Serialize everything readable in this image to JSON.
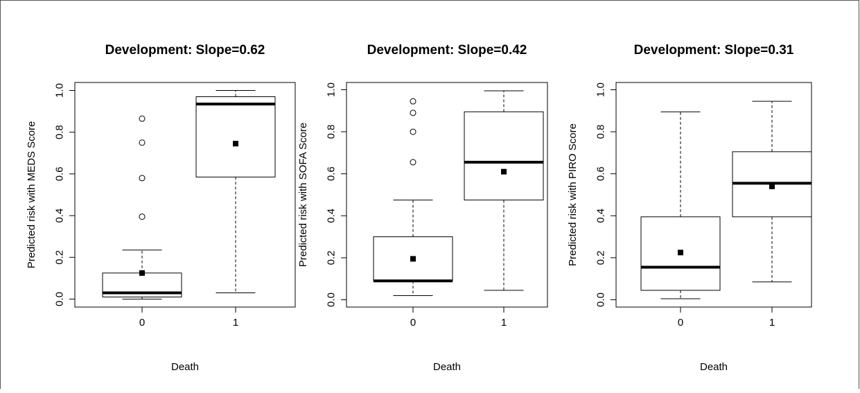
{
  "chart_data": [
    {
      "type": "boxplot",
      "title": "Development: Slope=0.62",
      "xlabel": "Death",
      "ylabel": "Predicted risk with MEDS Score",
      "categories": [
        "0",
        "1"
      ],
      "yticks": [
        "0.0",
        "0.2",
        "0.4",
        "0.6",
        "0.8",
        "1.0"
      ],
      "ylim": [
        0,
        1
      ],
      "boxes": [
        {
          "category": "0",
          "whisker_low": 0.0,
          "q1": 0.01,
          "median": 0.03,
          "q3": 0.125,
          "whisker_high": 0.235,
          "mean": 0.125,
          "outliers": [
            0.395,
            0.58,
            0.75,
            0.865
          ]
        },
        {
          "category": "1",
          "whisker_low": 0.03,
          "q1": 0.585,
          "median": 0.935,
          "q3": 0.97,
          "whisker_high": 1.0,
          "mean": 0.745,
          "outliers": []
        }
      ]
    },
    {
      "type": "boxplot",
      "title": "Development: Slope=0.42",
      "xlabel": "Death",
      "ylabel": "Predicted risk with SOFA Score",
      "categories": [
        "0",
        "1"
      ],
      "yticks": [
        "0.0",
        "0.2",
        "0.4",
        "0.6",
        "0.8",
        "1.0"
      ],
      "ylim": [
        0,
        1
      ],
      "boxes": [
        {
          "category": "0",
          "whisker_low": 0.02,
          "q1": 0.09,
          "median": 0.09,
          "q3": 0.3,
          "whisker_high": 0.475,
          "mean": 0.195,
          "outliers": [
            0.655,
            0.8,
            0.89,
            0.945
          ]
        },
        {
          "category": "1",
          "whisker_low": 0.045,
          "q1": 0.475,
          "median": 0.655,
          "q3": 0.895,
          "whisker_high": 0.995,
          "mean": 0.61,
          "outliers": []
        }
      ]
    },
    {
      "type": "boxplot",
      "title": "Development: Slope=0.31",
      "xlabel": "Death",
      "ylabel": "Predicted risk with PIRO Score",
      "categories": [
        "0",
        "1"
      ],
      "yticks": [
        "0.0",
        "0.2",
        "0.4",
        "0.6",
        "0.8",
        "1.0"
      ],
      "ylim": [
        0,
        1
      ],
      "boxes": [
        {
          "category": "0",
          "whisker_low": 0.005,
          "q1": 0.045,
          "median": 0.155,
          "q3": 0.395,
          "whisker_high": 0.895,
          "mean": 0.225,
          "outliers": []
        },
        {
          "category": "1",
          "whisker_low": 0.085,
          "q1": 0.395,
          "median": 0.555,
          "q3": 0.705,
          "whisker_high": 0.945,
          "mean": 0.54,
          "outliers": []
        }
      ]
    }
  ]
}
